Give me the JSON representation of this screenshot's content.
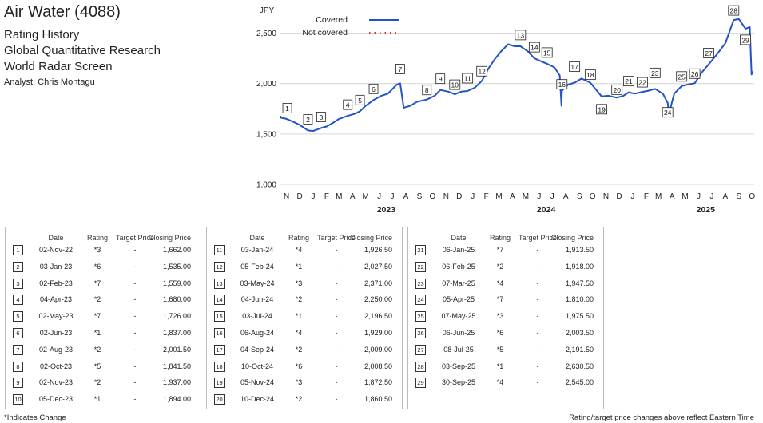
{
  "header": {
    "title": "Air Water (4088)",
    "subtitle_1": "Rating History",
    "subtitle_2": "Global Quantitative Research",
    "subtitle_3": "World Radar Screen",
    "analyst": "Analyst: Chris Montagu"
  },
  "table_headers": {
    "date": "Date",
    "rating": "Rating",
    "target_price": "Target Price",
    "closing_price": "Closing Price"
  },
  "footer": {
    "left": "*Indicates Change",
    "right": "Rating/target price changes above reflect Eastern Time"
  },
  "chart_data": {
    "type": "line",
    "ylabel": "JPY",
    "ylim": [
      1000,
      2750
    ],
    "yticks": [
      "1,000",
      "1,500",
      "2,000",
      "2,500"
    ],
    "ytick_values": [
      1000,
      1500,
      2000,
      2500
    ],
    "month_ticks": [
      "N",
      "D",
      "J",
      "F",
      "M",
      "A",
      "M",
      "J",
      "J",
      "A",
      "S",
      "O",
      "N",
      "D",
      "J",
      "F",
      "M",
      "A",
      "M",
      "J",
      "J",
      "A",
      "S",
      "O",
      "N",
      "D",
      "J",
      "F",
      "M",
      "A",
      "M",
      "J",
      "J",
      "A",
      "S",
      "O"
    ],
    "month_tick_dates": [
      "2022-11",
      "2022-12",
      "2023-01",
      "2023-02",
      "2023-03",
      "2023-04",
      "2023-05",
      "2023-06",
      "2023-07",
      "2023-08",
      "2023-09",
      "2023-10",
      "2023-11",
      "2023-12",
      "2024-01",
      "2024-02",
      "2024-03",
      "2024-04",
      "2024-05",
      "2024-06",
      "2024-07",
      "2024-08",
      "2024-09",
      "2024-10",
      "2024-11",
      "2024-12",
      "2025-01",
      "2025-02",
      "2025-03",
      "2025-04",
      "2025-05",
      "2025-06",
      "2025-07",
      "2025-08",
      "2025-09",
      "2025-10"
    ],
    "year_labels": [
      {
        "label": "2023",
        "date": "2023-07-01"
      },
      {
        "label": "2024",
        "date": "2024-07-01"
      },
      {
        "label": "2025",
        "date": "2025-07-01"
      }
    ],
    "xlim": [
      "2022-11-01",
      "2025-10-20"
    ],
    "grid": "horizontal",
    "legend_position": "top",
    "series": [
      {
        "name": "Covered",
        "color": "#2453c9",
        "style": "solid",
        "points": [
          [
            "2022-11-01",
            1680
          ],
          [
            "2022-11-02",
            1662
          ],
          [
            "2022-11-15",
            1650
          ],
          [
            "2022-12-01",
            1620
          ],
          [
            "2022-12-15",
            1590
          ],
          [
            "2023-01-03",
            1535
          ],
          [
            "2023-01-15",
            1530
          ],
          [
            "2023-02-02",
            1559
          ],
          [
            "2023-02-15",
            1575
          ],
          [
            "2023-03-01",
            1610
          ],
          [
            "2023-03-15",
            1650
          ],
          [
            "2023-04-04",
            1680
          ],
          [
            "2023-04-20",
            1700
          ],
          [
            "2023-05-02",
            1726
          ],
          [
            "2023-05-15",
            1780
          ],
          [
            "2023-06-02",
            1837
          ],
          [
            "2023-06-20",
            1880
          ],
          [
            "2023-07-05",
            1900
          ],
          [
            "2023-07-25",
            1990
          ],
          [
            "2023-08-02",
            2001.5
          ],
          [
            "2023-08-10",
            1760
          ],
          [
            "2023-08-25",
            1780
          ],
          [
            "2023-09-10",
            1820
          ],
          [
            "2023-10-02",
            1841.5
          ],
          [
            "2023-10-20",
            1880
          ],
          [
            "2023-11-02",
            1937
          ],
          [
            "2023-11-20",
            1920
          ],
          [
            "2023-12-05",
            1894
          ],
          [
            "2023-12-20",
            1920
          ],
          [
            "2024-01-03",
            1926.5
          ],
          [
            "2024-01-20",
            1960
          ],
          [
            "2024-02-05",
            2027.5
          ],
          [
            "2024-02-20",
            2150
          ],
          [
            "2024-03-05",
            2240
          ],
          [
            "2024-03-20",
            2320
          ],
          [
            "2024-04-05",
            2390
          ],
          [
            "2024-04-20",
            2370
          ],
          [
            "2024-05-03",
            2371
          ],
          [
            "2024-05-20",
            2320
          ],
          [
            "2024-06-04",
            2250
          ],
          [
            "2024-06-20",
            2220
          ],
          [
            "2024-07-03",
            2196.5
          ],
          [
            "2024-07-20",
            2160
          ],
          [
            "2024-08-01",
            2080
          ],
          [
            "2024-08-05",
            1780
          ],
          [
            "2024-08-06",
            1929
          ],
          [
            "2024-08-20",
            1990
          ],
          [
            "2024-09-04",
            2009
          ],
          [
            "2024-09-20",
            2050
          ],
          [
            "2024-10-10",
            2008.5
          ],
          [
            "2024-10-25",
            1930
          ],
          [
            "2024-11-05",
            1872.5
          ],
          [
            "2024-11-20",
            1880
          ],
          [
            "2024-12-10",
            1860.5
          ],
          [
            "2024-12-25",
            1880
          ],
          [
            "2025-01-06",
            1913.5
          ],
          [
            "2025-01-20",
            1900
          ],
          [
            "2025-02-06",
            1918
          ],
          [
            "2025-02-20",
            1930
          ],
          [
            "2025-03-07",
            1947.5
          ],
          [
            "2025-03-25",
            1900
          ],
          [
            "2025-04-05",
            1810
          ],
          [
            "2025-04-08",
            1700
          ],
          [
            "2025-04-20",
            1900
          ],
          [
            "2025-05-07",
            1975.5
          ],
          [
            "2025-05-20",
            1990
          ],
          [
            "2025-06-06",
            2003.5
          ],
          [
            "2025-06-20",
            2100
          ],
          [
            "2025-07-08",
            2191.5
          ],
          [
            "2025-07-25",
            2280
          ],
          [
            "2025-08-15",
            2400
          ],
          [
            "2025-09-03",
            2630.5
          ],
          [
            "2025-09-15",
            2640
          ],
          [
            "2025-09-30",
            2545
          ],
          [
            "2025-10-10",
            2560
          ],
          [
            "2025-10-14",
            2090
          ],
          [
            "2025-10-17",
            2120
          ]
        ]
      },
      {
        "name": "Not covered",
        "color": "#e0352b",
        "style": "dotted",
        "points": []
      }
    ],
    "markers": [
      {
        "n": 1,
        "date": "2022-11-02",
        "price": 1662
      },
      {
        "n": 2,
        "date": "2023-01-03",
        "price": 1535
      },
      {
        "n": 3,
        "date": "2023-02-02",
        "price": 1559
      },
      {
        "n": 4,
        "date": "2023-04-04",
        "price": 1680
      },
      {
        "n": 5,
        "date": "2023-05-02",
        "price": 1726
      },
      {
        "n": 6,
        "date": "2023-06-02",
        "price": 1837
      },
      {
        "n": 7,
        "date": "2023-08-02",
        "price": 2001.5
      },
      {
        "n": 8,
        "date": "2023-10-02",
        "price": 1841.5
      },
      {
        "n": 9,
        "date": "2023-11-02",
        "price": 1937
      },
      {
        "n": 10,
        "date": "2023-12-05",
        "price": 1894
      },
      {
        "n": 11,
        "date": "2024-01-03",
        "price": 1926.5
      },
      {
        "n": 12,
        "date": "2024-02-05",
        "price": 2027.5
      },
      {
        "n": 13,
        "date": "2024-05-03",
        "price": 2371
      },
      {
        "n": 14,
        "date": "2024-06-04",
        "price": 2250
      },
      {
        "n": 15,
        "date": "2024-07-03",
        "price": 2196.5
      },
      {
        "n": 16,
        "date": "2024-08-06",
        "price": 1929
      },
      {
        "n": 17,
        "date": "2024-09-04",
        "price": 2009
      },
      {
        "n": 18,
        "date": "2024-10-10",
        "price": 2008.5
      },
      {
        "n": 19,
        "date": "2024-11-05",
        "price": 1872.5
      },
      {
        "n": 20,
        "date": "2024-12-10",
        "price": 1860.5
      },
      {
        "n": 21,
        "date": "2025-01-06",
        "price": 1913.5
      },
      {
        "n": 22,
        "date": "2025-02-06",
        "price": 1918
      },
      {
        "n": 23,
        "date": "2025-03-07",
        "price": 1947.5
      },
      {
        "n": 24,
        "date": "2025-04-05",
        "price": 1810
      },
      {
        "n": 25,
        "date": "2025-05-07",
        "price": 1975.5
      },
      {
        "n": 26,
        "date": "2025-06-06",
        "price": 2003.5
      },
      {
        "n": 27,
        "date": "2025-07-08",
        "price": 2191.5
      },
      {
        "n": 28,
        "date": "2025-09-03",
        "price": 2630.5
      },
      {
        "n": 29,
        "date": "2025-09-30",
        "price": 2545
      }
    ]
  },
  "table": [
    {
      "n": "1",
      "date": "02-Nov-22",
      "rating": "*3",
      "target": "-",
      "close": "1,662.00"
    },
    {
      "n": "2",
      "date": "03-Jan-23",
      "rating": "*6",
      "target": "-",
      "close": "1,535.00"
    },
    {
      "n": "3",
      "date": "02-Feb-23",
      "rating": "*7",
      "target": "-",
      "close": "1,559.00"
    },
    {
      "n": "4",
      "date": "04-Apr-23",
      "rating": "*2",
      "target": "-",
      "close": "1,680.00"
    },
    {
      "n": "5",
      "date": "02-May-23",
      "rating": "*7",
      "target": "-",
      "close": "1,726.00"
    },
    {
      "n": "6",
      "date": "02-Jun-23",
      "rating": "*1",
      "target": "-",
      "close": "1,837.00"
    },
    {
      "n": "7",
      "date": "02-Aug-23",
      "rating": "*2",
      "target": "-",
      "close": "2,001.50"
    },
    {
      "n": "8",
      "date": "02-Oct-23",
      "rating": "*5",
      "target": "-",
      "close": "1,841.50"
    },
    {
      "n": "9",
      "date": "02-Nov-23",
      "rating": "*2",
      "target": "-",
      "close": "1,937.00"
    },
    {
      "n": "10",
      "date": "05-Dec-23",
      "rating": "*1",
      "target": "-",
      "close": "1,894.00"
    },
    {
      "n": "11",
      "date": "03-Jan-24",
      "rating": "*4",
      "target": "-",
      "close": "1,926.50"
    },
    {
      "n": "12",
      "date": "05-Feb-24",
      "rating": "*1",
      "target": "-",
      "close": "2,027.50"
    },
    {
      "n": "13",
      "date": "03-May-24",
      "rating": "*3",
      "target": "-",
      "close": "2,371.00"
    },
    {
      "n": "14",
      "date": "04-Jun-24",
      "rating": "*2",
      "target": "-",
      "close": "2,250.00"
    },
    {
      "n": "15",
      "date": "03-Jul-24",
      "rating": "*1",
      "target": "-",
      "close": "2,196.50"
    },
    {
      "n": "16",
      "date": "06-Aug-24",
      "rating": "*4",
      "target": "-",
      "close": "1,929.00"
    },
    {
      "n": "17",
      "date": "04-Sep-24",
      "rating": "*2",
      "target": "-",
      "close": "2,009.00"
    },
    {
      "n": "18",
      "date": "10-Oct-24",
      "rating": "*6",
      "target": "-",
      "close": "2,008.50"
    },
    {
      "n": "19",
      "date": "05-Nov-24",
      "rating": "*3",
      "target": "-",
      "close": "1,872.50"
    },
    {
      "n": "20",
      "date": "10-Dec-24",
      "rating": "*2",
      "target": "-",
      "close": "1,860.50"
    },
    {
      "n": "21",
      "date": "06-Jan-25",
      "rating": "*7",
      "target": "-",
      "close": "1,913.50"
    },
    {
      "n": "22",
      "date": "06-Feb-25",
      "rating": "*2",
      "target": "-",
      "close": "1,918.00"
    },
    {
      "n": "23",
      "date": "07-Mar-25",
      "rating": "*4",
      "target": "-",
      "close": "1,947.50"
    },
    {
      "n": "24",
      "date": "05-Apr-25",
      "rating": "*7",
      "target": "-",
      "close": "1,810.00"
    },
    {
      "n": "25",
      "date": "07-May-25",
      "rating": "*3",
      "target": "-",
      "close": "1,975.50"
    },
    {
      "n": "26",
      "date": "06-Jun-25",
      "rating": "*6",
      "target": "-",
      "close": "2,003.50"
    },
    {
      "n": "27",
      "date": "08-Jul-25",
      "rating": "*5",
      "target": "-",
      "close": "2,191.50"
    },
    {
      "n": "28",
      "date": "03-Sep-25",
      "rating": "*1",
      "target": "-",
      "close": "2,630.50"
    },
    {
      "n": "29",
      "date": "30-Sep-25",
      "rating": "*4",
      "target": "-",
      "close": "2,545.00"
    }
  ]
}
